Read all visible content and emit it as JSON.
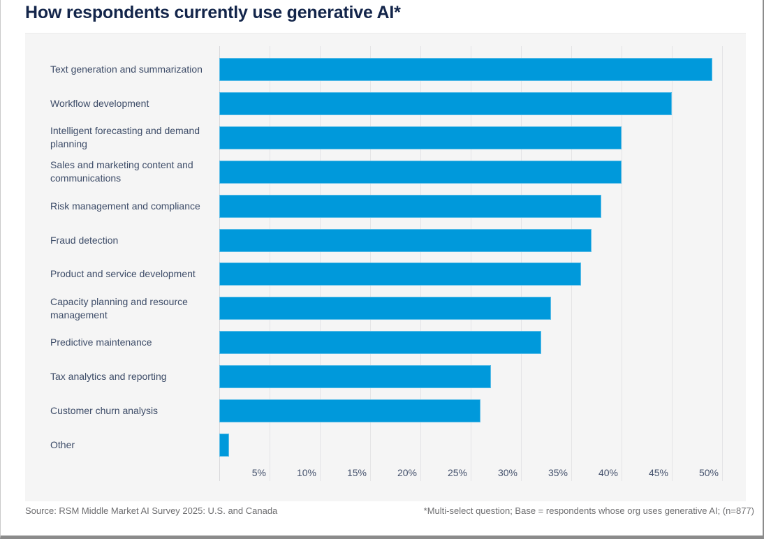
{
  "title": "How respondents currently use generative AI*",
  "chart_data": {
    "type": "bar",
    "orientation": "horizontal",
    "title": "How respondents currently use generative AI*",
    "categories": [
      "Text generation and summarization",
      "Workflow development",
      "Intelligent forecasting and demand planning",
      "Sales and marketing content and communications",
      "Risk management and compliance",
      "Fraud detection",
      "Product and service development",
      "Capacity planning and resource management",
      "Predictive maintenance",
      "Tax analytics and reporting",
      "Customer churn analysis",
      "Other"
    ],
    "values": [
      49,
      45,
      40,
      40,
      38,
      37,
      36,
      33,
      32,
      27,
      26,
      1
    ],
    "unit": "%",
    "x_tick_labels": [
      "5%",
      "10%",
      "15%",
      "20%",
      "25%",
      "30%",
      "35%",
      "40%",
      "45%",
      "50%"
    ],
    "x_tick_values": [
      5,
      10,
      15,
      20,
      25,
      30,
      35,
      40,
      45,
      50
    ],
    "xlim": [
      0,
      52
    ],
    "grid": true,
    "legend": false,
    "bar_color": "#0099db"
  },
  "colors": {
    "title_text": "#13254a",
    "label_text": "#3d4c68",
    "bar_fill": "#0099db",
    "panel_background": "#f5f5f5",
    "gridline": "#e4e4e6",
    "footer_text": "#6e6e70"
  },
  "footer": {
    "source": "Source: RSM Middle Market AI Survey 2025: U.S. and Canada",
    "footnote": "*Multi-select question; Base = respondents whose org uses generative AI; (n=877)"
  }
}
